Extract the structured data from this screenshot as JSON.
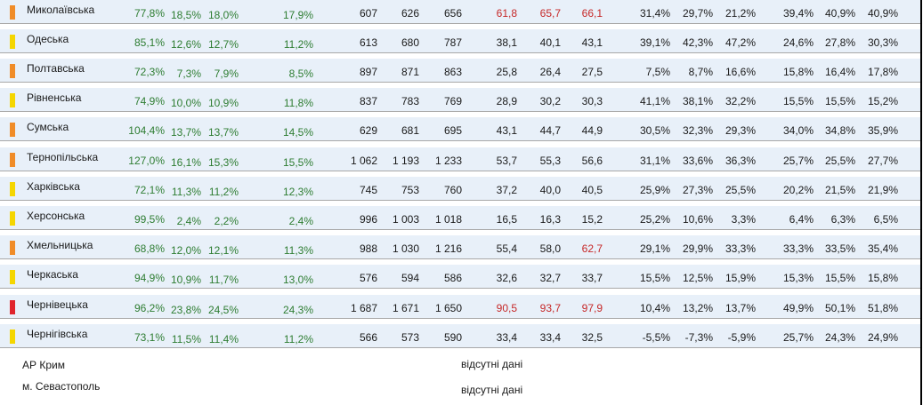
{
  "colors": {
    "orange": "#f08c28",
    "yellow": "#f5d600",
    "red": "#e0242c",
    "green_text": "#2e7d32",
    "red_text": "#c62828",
    "row_bg": "#e8f0f9"
  },
  "rows": [
    {
      "region": "Миколаївська",
      "marker": "orange",
      "cells": [
        "77,8%",
        "18,5%",
        "18,0%",
        "17,9%",
        "607",
        "626",
        "656",
        "61,8",
        "65,7",
        "66,1",
        "31,4%",
        "29,7%",
        "21,2%",
        "39,4%",
        "40,9%",
        "40,9%"
      ],
      "red": [
        7,
        8,
        9
      ]
    },
    {
      "region": "Одеська",
      "marker": "yellow",
      "cells": [
        "85,1%",
        "12,6%",
        "12,7%",
        "11,2%",
        "613",
        "680",
        "787",
        "38,1",
        "40,1",
        "43,1",
        "39,1%",
        "42,3%",
        "47,2%",
        "24,6%",
        "27,8%",
        "30,3%"
      ],
      "red": []
    },
    {
      "region": "Полтавська",
      "marker": "orange",
      "cells": [
        "72,3%",
        "7,3%",
        "7,9%",
        "8,5%",
        "897",
        "871",
        "863",
        "25,8",
        "26,4",
        "27,5",
        "7,5%",
        "8,7%",
        "16,6%",
        "15,8%",
        "16,4%",
        "17,8%"
      ],
      "red": []
    },
    {
      "region": "Рівненська",
      "marker": "yellow",
      "cells": [
        "74,9%",
        "10,0%",
        "10,9%",
        "11,8%",
        "837",
        "783",
        "769",
        "28,9",
        "30,2",
        "30,3",
        "41,1%",
        "38,1%",
        "32,2%",
        "15,5%",
        "15,5%",
        "15,2%"
      ],
      "red": []
    },
    {
      "region": "Сумська",
      "marker": "orange",
      "cells": [
        "104,4%",
        "13,7%",
        "13,7%",
        "14,5%",
        "629",
        "681",
        "695",
        "43,1",
        "44,7",
        "44,9",
        "30,5%",
        "32,3%",
        "29,3%",
        "34,0%",
        "34,8%",
        "35,9%"
      ],
      "red": []
    },
    {
      "region": "Тернопільська",
      "marker": "orange",
      "cells": [
        "127,0%",
        "16,1%",
        "15,3%",
        "15,5%",
        "1 062",
        "1 193",
        "1 233",
        "53,7",
        "55,3",
        "56,6",
        "31,1%",
        "33,6%",
        "36,3%",
        "25,7%",
        "25,5%",
        "27,7%"
      ],
      "red": []
    },
    {
      "region": "Харківська",
      "marker": "yellow",
      "cells": [
        "72,1%",
        "11,3%",
        "11,2%",
        "12,3%",
        "745",
        "753",
        "760",
        "37,2",
        "40,0",
        "40,5",
        "25,9%",
        "27,3%",
        "25,5%",
        "20,2%",
        "21,5%",
        "21,9%"
      ],
      "red": []
    },
    {
      "region": "Херсонська",
      "marker": "yellow",
      "cells": [
        "99,5%",
        "2,4%",
        "2,2%",
        "2,4%",
        "996",
        "1 003",
        "1 018",
        "16,5",
        "16,3",
        "15,2",
        "25,2%",
        "10,6%",
        "3,3%",
        "6,4%",
        "6,3%",
        "6,5%"
      ],
      "red": []
    },
    {
      "region": "Хмельницька",
      "marker": "orange",
      "cells": [
        "68,8%",
        "12,0%",
        "12,1%",
        "11,3%",
        "988",
        "1 030",
        "1 216",
        "55,4",
        "58,0",
        "62,7",
        "29,1%",
        "29,9%",
        "33,3%",
        "33,3%",
        "33,5%",
        "35,4%"
      ],
      "red": [
        9
      ]
    },
    {
      "region": "Черкаська",
      "marker": "yellow",
      "cells": [
        "94,9%",
        "10,9%",
        "11,7%",
        "13,0%",
        "576",
        "594",
        "586",
        "32,6",
        "32,7",
        "33,7",
        "15,5%",
        "12,5%",
        "15,9%",
        "15,3%",
        "15,5%",
        "15,8%"
      ],
      "red": []
    },
    {
      "region": "Чернівецька",
      "marker": "red",
      "cells": [
        "96,2%",
        "23,8%",
        "24,5%",
        "24,3%",
        "1 687",
        "1 671",
        "1 650",
        "90,5",
        "93,7",
        "97,9",
        "10,4%",
        "13,2%",
        "13,7%",
        "49,9%",
        "50,1%",
        "51,8%"
      ],
      "red": [
        7,
        8,
        9
      ]
    },
    {
      "region": "Чернігівська",
      "marker": "yellow",
      "cells": [
        "73,1%",
        "11,5%",
        "11,4%",
        "11,2%",
        "566",
        "573",
        "590",
        "33,4",
        "33,4",
        "32,5",
        "-5,5%",
        "-7,3%",
        "-5,9%",
        "25,7%",
        "24,3%",
        "24,9%"
      ],
      "red": []
    }
  ],
  "footer": {
    "crimea": "АР Крим",
    "sevastopol": "м. Севастополь",
    "no_data_1": "відсутні дані",
    "no_data_2": "відсутні дані"
  }
}
